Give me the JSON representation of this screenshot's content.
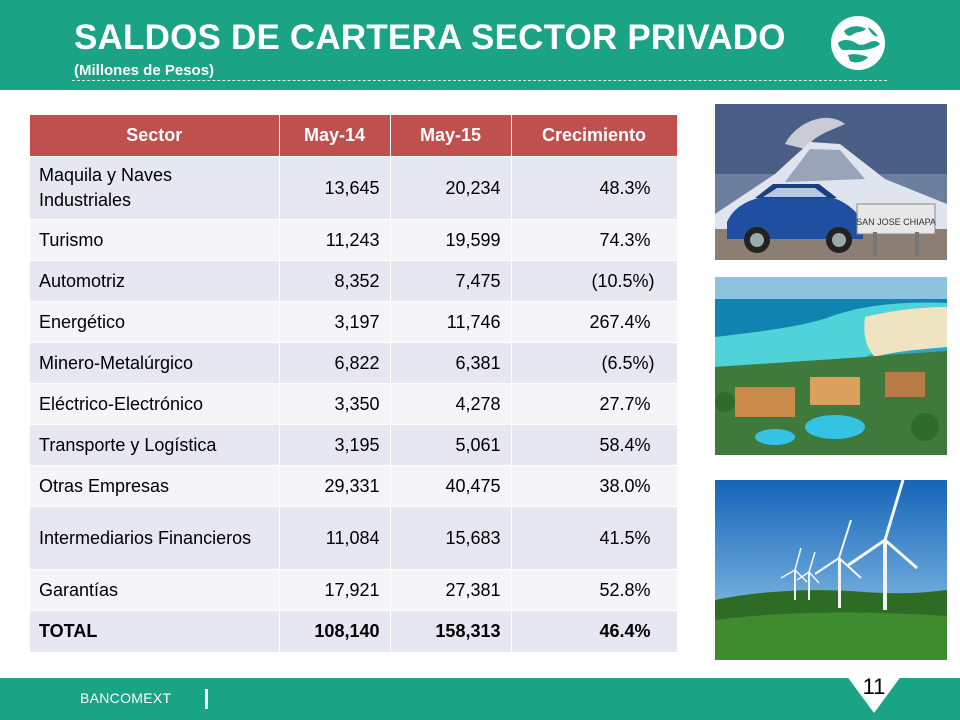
{
  "header": {
    "title": "SALDOS DE CARTERA SECTOR PRIVADO",
    "subtitle": "(Millones de Pesos)"
  },
  "table": {
    "columns": [
      "Sector",
      "May-14",
      "May-15",
      "Crecimiento"
    ],
    "rows": [
      {
        "sector": "Maquila y Naves Industriales",
        "may14": "13,645",
        "may15": "20,234",
        "growth": "48.3%"
      },
      {
        "sector": "Turismo",
        "may14": "11,243",
        "may15": "19,599",
        "growth": "74.3%"
      },
      {
        "sector": "Automotriz",
        "may14": "8,352",
        "may15": "7,475",
        "growth": "(10.5%)"
      },
      {
        "sector": "Energético",
        "may14": "3,197",
        "may15": "11,746",
        "growth": "267.4%"
      },
      {
        "sector": "Minero-Metalúrgico",
        "may14": "6,822",
        "may15": "6,381",
        "growth": "(6.5%)"
      },
      {
        "sector": "Eléctrico-Electrónico",
        "may14": "3,350",
        "may15": "4,278",
        "growth": "27.7%"
      },
      {
        "sector": "Transporte y Logística",
        "may14": "3,195",
        "may15": "5,061",
        "growth": "58.4%"
      },
      {
        "sector": "Otras Empresas",
        "may14": "29,331",
        "may15": "40,475",
        "growth": "38.0%"
      },
      {
        "sector": "Intermediarios Financieros",
        "may14": "11,084",
        "may15": "15,683",
        "growth": "41.5%"
      },
      {
        "sector": "Garantías",
        "may14": "17,921",
        "may15": "27,381",
        "growth": "52.8%"
      },
      {
        "sector": "TOTAL",
        "may14": "108,140",
        "may15": "158,313",
        "growth": "46.4%"
      }
    ]
  },
  "photos": {
    "car_sign_text": "SAN JOSE CHIAPA"
  },
  "footer": {
    "brand": "BANCOMEXT",
    "page_number": "11"
  },
  "colors": {
    "brand_green": "#1aa385",
    "header_row": "#c0504d",
    "row_odd": "#e6e7f1",
    "row_even": "#f4f4f9"
  }
}
